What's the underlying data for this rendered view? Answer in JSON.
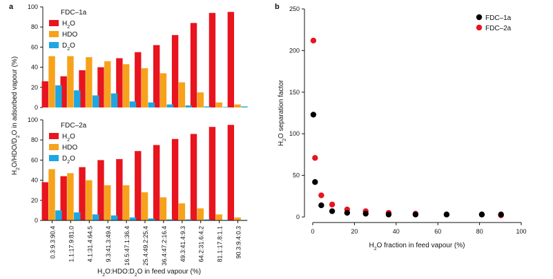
{
  "chart_data": [
    {
      "panel": "a",
      "type": "bar",
      "layout": "two stacked bar panels sharing x-axis",
      "ylabel": "H2O/HDO/D2O in adsorbed vapour (%)",
      "xlabel": "H2O:HDO:D2O in feed vapour (%)",
      "categories": [
        "0.3:9.3:90.4",
        "1.1:17.9:81.0",
        "4.1:31.4:64.5",
        "9.3:41.3:49.4",
        "16.5:47.1:36.4",
        "25.4:49.2:25.4",
        "36.4:47.2:16.4",
        "49.3:41.4:9.3",
        "64.2:31.6:4.2",
        "81.1:17.8:1.1",
        "90.3:9.4:0.3"
      ],
      "subpanels": [
        {
          "title": "FDC–1a",
          "ylim": [
            0,
            100
          ],
          "yticks": [
            0,
            20,
            40,
            60,
            80,
            100
          ],
          "series": [
            {
              "name": "H2O",
              "color": "#e8141e",
              "values": [
                26,
                31,
                37,
                40,
                49,
                55,
                62,
                72,
                84,
                94,
                95
              ]
            },
            {
              "name": "HDO",
              "color": "#f7a21b",
              "values": [
                51,
                51,
                50,
                46,
                43,
                39,
                34,
                25,
                15,
                5,
                3
              ]
            },
            {
              "name": "D2O",
              "color": "#1ea7e1",
              "values": [
                22,
                17,
                12,
                14,
                6,
                5,
                3,
                2,
                1,
                0.5,
                1
              ]
            }
          ]
        },
        {
          "title": "FDC–2a",
          "ylim": [
            0,
            100
          ],
          "yticks": [
            0,
            20,
            40,
            60,
            80,
            100
          ],
          "series": [
            {
              "name": "H2O",
              "color": "#e8141e",
              "values": [
                38,
                44,
                53,
                60,
                61,
                69,
                75,
                81,
                86,
                93,
                95
              ]
            },
            {
              "name": "HDO",
              "color": "#f7a21b",
              "values": [
                51,
                47,
                40,
                35,
                35,
                28,
                23,
                17,
                12,
                6,
                3
              ]
            },
            {
              "name": "D2O",
              "color": "#1ea7e1",
              "values": [
                10,
                8,
                6,
                5,
                3,
                2,
                1,
                1,
                1,
                0.5,
                0.5
              ]
            }
          ]
        }
      ]
    },
    {
      "panel": "b",
      "type": "scatter",
      "xlabel": "H2O fraction in feed vapour (%)",
      "ylabel": "H2O separation factor",
      "xlim": [
        0,
        100
      ],
      "ylim": [
        0,
        250
      ],
      "xticks": [
        0,
        20,
        40,
        60,
        80,
        100
      ],
      "yticks": [
        0,
        50,
        100,
        150,
        200,
        250
      ],
      "series": [
        {
          "name": "FDC–1a",
          "color": "#000000",
          "x": [
            0.3,
            1.1,
            4.1,
            9.3,
            16.5,
            25.4,
            36.4,
            49.3,
            64.2,
            81.1,
            90.3
          ],
          "y": [
            123,
            42,
            14,
            7,
            5,
            4,
            3,
            3,
            3,
            3,
            3
          ]
        },
        {
          "name": "FDC–2a",
          "color": "#e8141e",
          "x": [
            0.3,
            1.1,
            4.1,
            9.3,
            16.5,
            25.4,
            36.4,
            49.3,
            64.2,
            81.1,
            90.3
          ],
          "y": [
            212,
            71,
            26,
            15,
            9,
            7,
            5,
            4,
            3,
            3,
            2
          ]
        }
      ]
    }
  ]
}
